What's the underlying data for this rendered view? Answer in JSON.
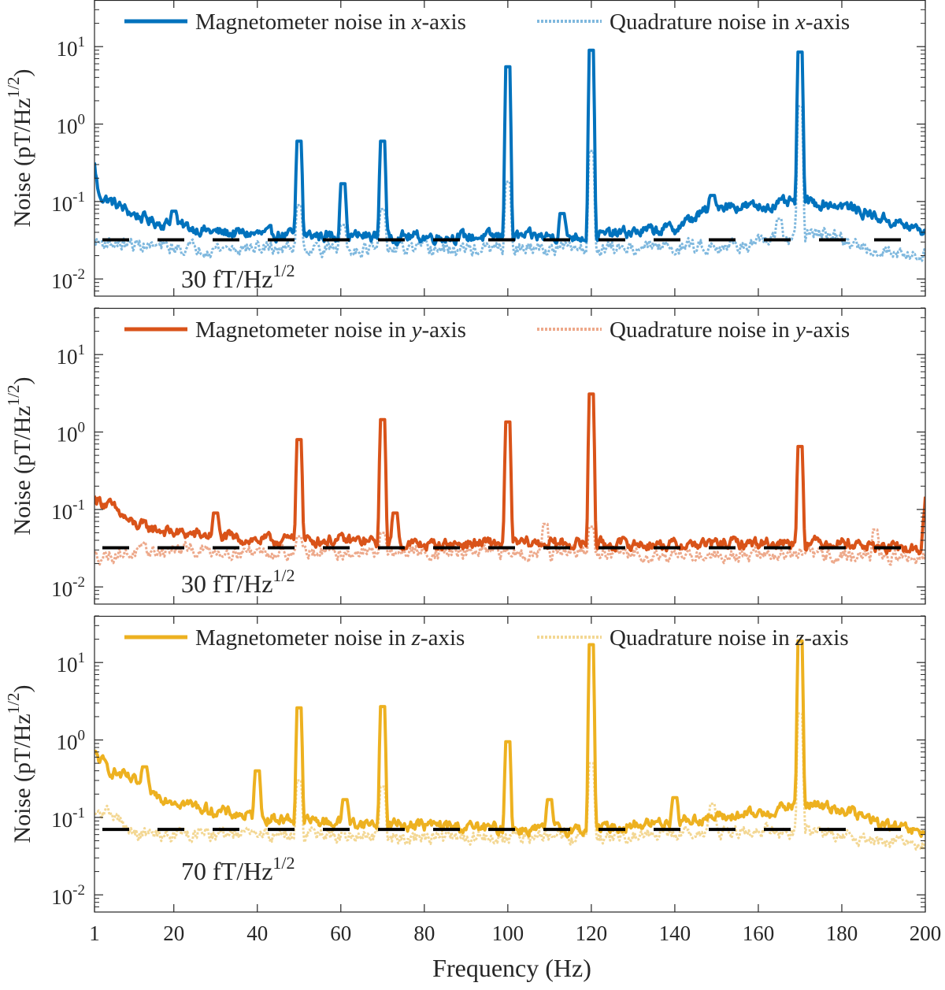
{
  "xlabel": "Frequency (Hz)",
  "ylabel": "Noise (pT/Hz",
  "ylabel_sup": "1/2",
  "ylabel_close": ")",
  "chart_data": [
    {
      "type": "line",
      "axis": "x",
      "color_main": "#0072BD",
      "color_quad": "#7FB8DE",
      "xlim": [
        1,
        200
      ],
      "ylim": [
        0.006,
        40
      ],
      "yscale": "log",
      "xticks": [
        1,
        20,
        40,
        60,
        80,
        100,
        120,
        140,
        160,
        180,
        200
      ],
      "xtick_labels": [
        "",
        "",
        "",
        "",
        "",
        "",
        "",
        "",
        "",
        "",
        ""
      ],
      "yticks": [
        0.01,
        0.1,
        1,
        10
      ],
      "ytick_bases": [
        "10",
        "10",
        "10",
        "10"
      ],
      "ytick_exps": [
        "-2",
        "-1",
        "0",
        "1"
      ],
      "legend": {
        "main_prefix": "Magnetometer noise in ",
        "quad_prefix": "Quadrature noise in ",
        "axis_letter": "x",
        "suffix": "-axis",
        "position": "top"
      },
      "reference": {
        "value": 0.032,
        "label_base": "30 fT/Hz",
        "label_sup": "1/2"
      },
      "series": [
        {
          "name": "Magnetometer noise in x-axis",
          "baseline": [
            [
              1,
              0.3
            ],
            [
              2,
              0.12
            ],
            [
              5,
              0.1
            ],
            [
              10,
              0.07
            ],
            [
              15,
              0.055
            ],
            [
              20,
              0.05
            ],
            [
              25,
              0.045
            ],
            [
              30,
              0.04
            ],
            [
              40,
              0.038
            ],
            [
              60,
              0.036
            ],
            [
              80,
              0.035
            ],
            [
              100,
              0.035
            ],
            [
              120,
              0.036
            ],
            [
              140,
              0.045
            ],
            [
              150,
              0.09
            ],
            [
              160,
              0.085
            ],
            [
              170,
              0.1
            ],
            [
              180,
              0.09
            ],
            [
              190,
              0.06
            ],
            [
              200,
              0.04
            ]
          ],
          "peaks": [
            [
              50,
              0.6
            ],
            [
              60.5,
              0.17
            ],
            [
              70,
              0.6
            ],
            [
              100,
              5.5
            ],
            [
              120,
              9
            ],
            [
              170,
              8.5
            ],
            [
              113,
              0.07
            ],
            [
              149,
              0.12
            ],
            [
              20,
              0.075
            ]
          ]
        },
        {
          "name": "Quadrature noise in x-axis",
          "baseline": [
            [
              1,
              0.03
            ],
            [
              20,
              0.025
            ],
            [
              50,
              0.025
            ],
            [
              80,
              0.024
            ],
            [
              100,
              0.024
            ],
            [
              140,
              0.026
            ],
            [
              160,
              0.028
            ],
            [
              175,
              0.04
            ],
            [
              185,
              0.025
            ],
            [
              200,
              0.02
            ]
          ],
          "peaks": [
            [
              50,
              0.09
            ],
            [
              60.5,
              0.05
            ],
            [
              70,
              0.08
            ],
            [
              100,
              0.18
            ],
            [
              120,
              0.45
            ],
            [
              170,
              1.7
            ],
            [
              165,
              0.06
            ]
          ]
        }
      ]
    },
    {
      "type": "line",
      "axis": "y",
      "color_main": "#D95319",
      "color_quad": "#EDA98B",
      "xlim": [
        1,
        200
      ],
      "ylim": [
        0.006,
        40
      ],
      "yscale": "log",
      "xticks": [
        1,
        20,
        40,
        60,
        80,
        100,
        120,
        140,
        160,
        180,
        200
      ],
      "xtick_labels": [
        "",
        "",
        "",
        "",
        "",
        "",
        "",
        "",
        "",
        "",
        ""
      ],
      "yticks": [
        0.01,
        0.1,
        1,
        10
      ],
      "ytick_bases": [
        "10",
        "10",
        "10",
        "10"
      ],
      "ytick_exps": [
        "-2",
        "-1",
        "0",
        "1"
      ],
      "legend": {
        "main_prefix": "Magnetometer noise in ",
        "quad_prefix": "Quadrature noise in ",
        "axis_letter": "y",
        "suffix": "-axis",
        "position": "top"
      },
      "reference": {
        "value": 0.032,
        "label_base": "30 fT/Hz",
        "label_sup": "1/2"
      },
      "series": [
        {
          "name": "Magnetometer noise in y-axis",
          "baseline": [
            [
              1,
              0.14
            ],
            [
              5,
              0.11
            ],
            [
              10,
              0.065
            ],
            [
              20,
              0.05
            ],
            [
              30,
              0.045
            ],
            [
              40,
              0.04
            ],
            [
              60,
              0.04
            ],
            [
              80,
              0.035
            ],
            [
              100,
              0.037
            ],
            [
              120,
              0.036
            ],
            [
              140,
              0.035
            ],
            [
              160,
              0.037
            ],
            [
              180,
              0.038
            ],
            [
              190,
              0.032
            ],
            [
              199,
              0.03
            ],
            [
              200,
              0.15
            ]
          ],
          "peaks": [
            [
              50,
              0.8
            ],
            [
              70,
              1.45
            ],
            [
              100,
              1.35
            ],
            [
              120,
              3.1
            ],
            [
              170,
              0.65
            ],
            [
              30,
              0.09
            ],
            [
              73,
              0.09
            ]
          ]
        },
        {
          "name": "Quadrature noise in y-axis",
          "baseline": [
            [
              1,
              0.025
            ],
            [
              20,
              0.03
            ],
            [
              50,
              0.028
            ],
            [
              80,
              0.028
            ],
            [
              100,
              0.028
            ],
            [
              140,
              0.026
            ],
            [
              170,
              0.026
            ],
            [
              190,
              0.025
            ],
            [
              200,
              0.022
            ]
          ],
          "peaks": [
            [
              109,
              0.065
            ],
            [
              50,
              0.045
            ],
            [
              70,
              0.05
            ],
            [
              120,
              0.06
            ],
            [
              188,
              0.055
            ]
          ]
        }
      ]
    },
    {
      "type": "line",
      "axis": "z",
      "color_main": "#EDB120",
      "color_quad": "#F3D793",
      "xlim": [
        1,
        200
      ],
      "ylim": [
        0.006,
        40
      ],
      "yscale": "log",
      "xticks": [
        1,
        20,
        40,
        60,
        80,
        100,
        120,
        140,
        160,
        180,
        200
      ],
      "xtick_labels": [
        "1",
        "20",
        "40",
        "60",
        "80",
        "100",
        "120",
        "140",
        "160",
        "180",
        "200"
      ],
      "yticks": [
        0.01,
        0.1,
        1,
        10
      ],
      "ytick_bases": [
        "10",
        "10",
        "10",
        "10"
      ],
      "ytick_exps": [
        "-2",
        "-1",
        "0",
        "1"
      ],
      "legend": {
        "main_prefix": "Magnetometer noise in ",
        "quad_prefix": "Quadrature noise in ",
        "axis_letter": "z",
        "suffix": "-axis",
        "position": "top"
      },
      "reference": {
        "value": 0.07,
        "label_base": "70 fT/Hz",
        "label_sup": "1/2"
      },
      "series": [
        {
          "name": "Magnetometer noise in z-axis",
          "baseline": [
            [
              1,
              0.65
            ],
            [
              5,
              0.4
            ],
            [
              10,
              0.3
            ],
            [
              15,
              0.2
            ],
            [
              20,
              0.17
            ],
            [
              25,
              0.14
            ],
            [
              30,
              0.12
            ],
            [
              40,
              0.1
            ],
            [
              60,
              0.085
            ],
            [
              80,
              0.08
            ],
            [
              100,
              0.07
            ],
            [
              120,
              0.07
            ],
            [
              140,
              0.09
            ],
            [
              160,
              0.11
            ],
            [
              170,
              0.15
            ],
            [
              180,
              0.13
            ],
            [
              190,
              0.08
            ],
            [
              200,
              0.06
            ]
          ],
          "peaks": [
            [
              40,
              0.4
            ],
            [
              50,
              2.6
            ],
            [
              70,
              2.7
            ],
            [
              100,
              0.95
            ],
            [
              120,
              17
            ],
            [
              170,
              19
            ],
            [
              13,
              0.45
            ],
            [
              110,
              0.17
            ],
            [
              140,
              0.18
            ],
            [
              61,
              0.17
            ]
          ]
        },
        {
          "name": "Quadrature noise in z-axis",
          "baseline": [
            [
              1,
              0.1
            ],
            [
              5,
              0.12
            ],
            [
              10,
              0.06
            ],
            [
              20,
              0.06
            ],
            [
              50,
              0.06
            ],
            [
              80,
              0.055
            ],
            [
              100,
              0.055
            ],
            [
              140,
              0.06
            ],
            [
              160,
              0.07
            ],
            [
              180,
              0.06
            ],
            [
              190,
              0.05
            ],
            [
              200,
              0.045
            ]
          ],
          "peaks": [
            [
              50,
              0.3
            ],
            [
              70,
              0.25
            ],
            [
              120,
              0.5
            ],
            [
              170,
              2.2
            ],
            [
              149,
              0.15
            ]
          ]
        }
      ]
    }
  ]
}
